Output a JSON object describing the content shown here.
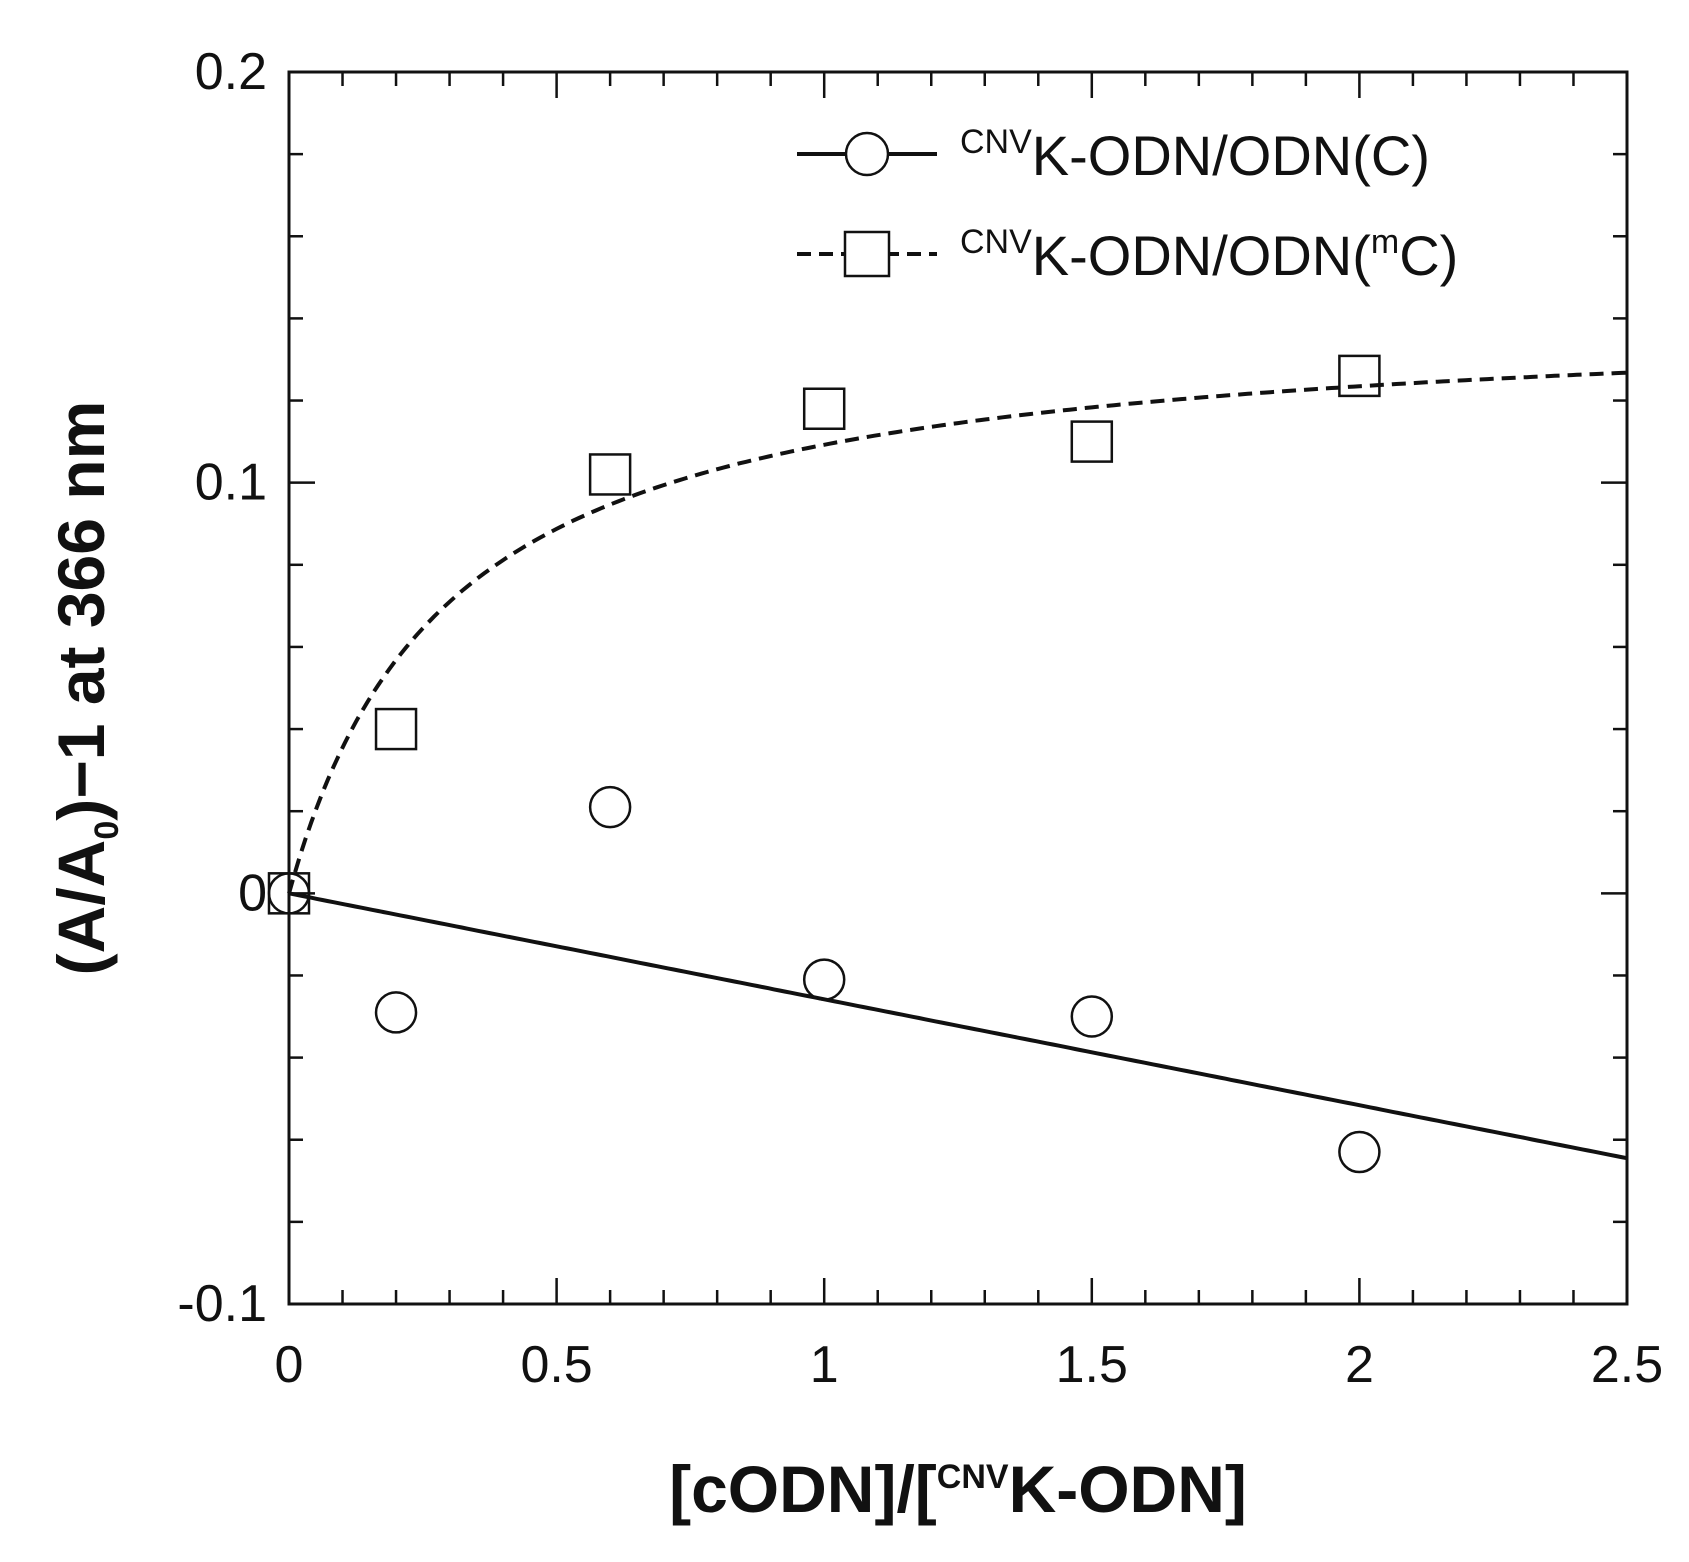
{
  "chart_data": {
    "type": "scatter",
    "xlabel": {
      "pre": "[cODN]/[",
      "sup": "CNV",
      "post": "K-ODN]"
    },
    "ylabel": {
      "pre": "(A/A",
      "sub": "0",
      "post": ")−1 at 366 nm"
    },
    "xlim": [
      0,
      2.5
    ],
    "ylim": [
      -0.1,
      0.2
    ],
    "x_ticks": [
      0,
      0.5,
      1,
      1.5,
      2,
      2.5
    ],
    "x_tick_labels": [
      "0",
      "0.5",
      "1",
      "1.5",
      "2",
      "2.5"
    ],
    "y_ticks": [
      -0.1,
      0,
      0.1,
      0.2
    ],
    "y_tick_labels": [
      "-0.1",
      "0",
      "0.1",
      "0.2"
    ],
    "x_minor_step": 0.1,
    "y_minor_step": 0.02,
    "grid": false,
    "legend_position": "top-right",
    "series": [
      {
        "name": {
          "sup": "CNV",
          "text": "K-ODN/ODN(C)"
        },
        "marker": "circle",
        "line_style": "solid",
        "x": [
          0,
          0.2,
          0.6,
          1,
          1.5,
          2
        ],
        "y": [
          0,
          -0.029,
          0.021,
          -0.021,
          -0.03,
          -0.063
        ],
        "fit": {
          "kind": "linear",
          "slope": -0.0258,
          "intercept": 0
        }
      },
      {
        "name": {
          "sup": "CNV",
          "text": "K-ODN/ODN(",
          "sup2": "m",
          "text2": "C)"
        },
        "marker": "square",
        "line_style": "dashed",
        "x": [
          0,
          0.2,
          0.6,
          1,
          1.5,
          2
        ],
        "y": [
          0,
          0.04,
          0.102,
          0.118,
          0.11,
          0.126
        ],
        "fit": {
          "kind": "saturation",
          "vmax": 0.142,
          "k": 0.3
        }
      }
    ]
  }
}
